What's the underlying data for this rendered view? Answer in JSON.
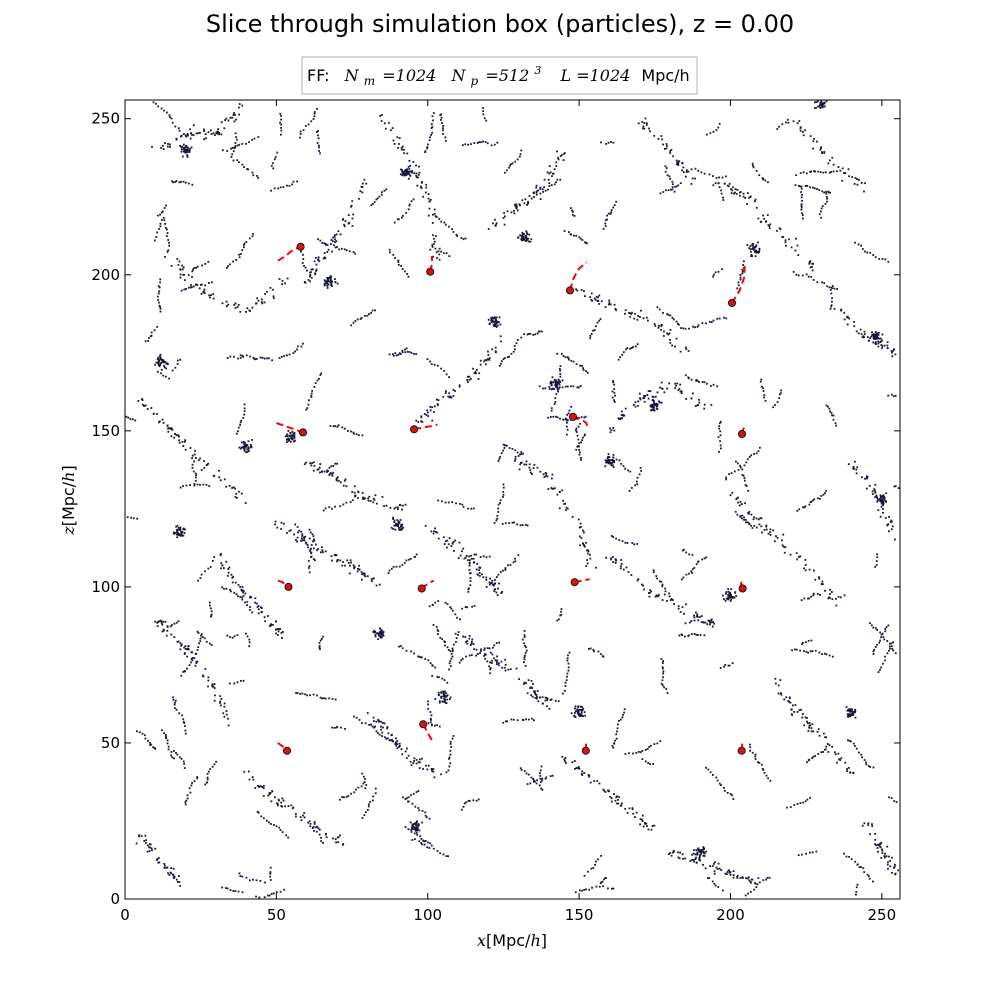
{
  "chart_data": {
    "type": "scatter",
    "title": "Slice through simulation box (particles), z = 0.00",
    "legend": {
      "prefix": "FF:",
      "n_m_symbol": "N",
      "n_m_sub": "m",
      "n_m_value": "=1024",
      "n_p_symbol": "N",
      "n_p_sub": "p",
      "n_p_value": "=512",
      "n_p_exp": "3",
      "l_symbol": "L",
      "l_value": "=1024",
      "l_unit": "Mpc/h",
      "placement": "top-center"
    },
    "xlabel": {
      "var": "x",
      "unit": "Mpc/",
      "unit_var": "h"
    },
    "ylabel": {
      "var": "z",
      "unit": "Mpc/",
      "unit_var": "h"
    },
    "xlim": [
      0,
      256
    ],
    "ylim": [
      0,
      256
    ],
    "xticks": [
      0,
      50,
      100,
      150,
      200,
      250
    ],
    "yticks": [
      0,
      50,
      100,
      150,
      200,
      250
    ],
    "grid": false,
    "particle_color": "#16163a",
    "track_color": "#ff0000",
    "marker_color": "#d01515",
    "particles_note_count": 3200,
    "filaments": [
      [
        [
          10,
          240
        ],
        [
          22,
          246
        ],
        [
          30,
          245
        ],
        [
          38,
          253
        ]
      ],
      [
        [
          15,
          205
        ],
        [
          25,
          195
        ],
        [
          40,
          188
        ],
        [
          55,
          200
        ]
      ],
      [
        [
          60,
          198
        ],
        [
          65,
          205
        ],
        [
          72,
          215
        ],
        [
          80,
          230
        ]
      ],
      [
        [
          85,
          250
        ],
        [
          95,
          235
        ],
        [
          100,
          225
        ],
        [
          103,
          205
        ]
      ],
      [
        [
          120,
          215
        ],
        [
          130,
          222
        ],
        [
          138,
          228
        ],
        [
          145,
          240
        ]
      ],
      [
        [
          150,
          195
        ],
        [
          160,
          190
        ],
        [
          175,
          185
        ],
        [
          185,
          175
        ]
      ],
      [
        [
          195,
          230
        ],
        [
          205,
          225
        ],
        [
          215,
          215
        ],
        [
          230,
          200
        ]
      ],
      [
        [
          235,
          190
        ],
        [
          245,
          180
        ],
        [
          255,
          175
        ]
      ],
      [
        [
          5,
          160
        ],
        [
          15,
          150
        ],
        [
          25,
          140
        ],
        [
          40,
          128
        ]
      ],
      [
        [
          50,
          120
        ],
        [
          60,
          115
        ],
        [
          72,
          108
        ],
        [
          85,
          100
        ]
      ],
      [
        [
          95,
          150
        ],
        [
          105,
          160
        ],
        [
          115,
          168
        ],
        [
          125,
          180
        ]
      ],
      [
        [
          130,
          140
        ],
        [
          140,
          135
        ],
        [
          150,
          120
        ],
        [
          155,
          105
        ]
      ],
      [
        [
          160,
          150
        ],
        [
          170,
          160
        ],
        [
          180,
          165
        ],
        [
          195,
          155
        ]
      ],
      [
        [
          200,
          130
        ],
        [
          210,
          120
        ],
        [
          222,
          110
        ],
        [
          235,
          95
        ]
      ],
      [
        [
          240,
          140
        ],
        [
          248,
          130
        ],
        [
          255,
          115
        ]
      ],
      [
        [
          10,
          90
        ],
        [
          20,
          80
        ],
        [
          28,
          70
        ],
        [
          35,
          55
        ]
      ],
      [
        [
          40,
          40
        ],
        [
          50,
          32
        ],
        [
          60,
          25
        ],
        [
          72,
          18
        ]
      ],
      [
        [
          80,
          60
        ],
        [
          88,
          52
        ],
        [
          95,
          45
        ],
        [
          105,
          38
        ]
      ],
      [
        [
          110,
          85
        ],
        [
          120,
          78
        ],
        [
          130,
          72
        ],
        [
          140,
          62
        ]
      ],
      [
        [
          145,
          45
        ],
        [
          155,
          38
        ],
        [
          165,
          30
        ],
        [
          175,
          22
        ]
      ],
      [
        [
          180,
          15
        ],
        [
          190,
          12
        ],
        [
          200,
          8
        ],
        [
          210,
          5
        ]
      ],
      [
        [
          215,
          70
        ],
        [
          222,
          60
        ],
        [
          230,
          52
        ],
        [
          240,
          40
        ]
      ],
      [
        [
          245,
          25
        ],
        [
          250,
          15
        ],
        [
          255,
          8
        ]
      ],
      [
        [
          5,
          20
        ],
        [
          12,
          12
        ],
        [
          18,
          5
        ]
      ],
      [
        [
          60,
          140
        ],
        [
          70,
          135
        ],
        [
          80,
          128
        ],
        [
          92,
          125
        ]
      ],
      [
        [
          160,
          110
        ],
        [
          172,
          100
        ],
        [
          185,
          92
        ],
        [
          196,
          88
        ]
      ],
      [
        [
          30,
          110
        ],
        [
          38,
          100
        ],
        [
          45,
          92
        ],
        [
          52,
          85
        ]
      ],
      [
        [
          100,
          120
        ],
        [
          110,
          112
        ],
        [
          118,
          104
        ],
        [
          125,
          98
        ]
      ],
      [
        [
          170,
          250
        ],
        [
          180,
          240
        ],
        [
          188,
          230
        ]
      ],
      [
        [
          220,
          250
        ],
        [
          232,
          238
        ],
        [
          244,
          228
        ]
      ]
    ],
    "clumps": [
      [
        20,
        240
      ],
      [
        68,
        198
      ],
      [
        93,
        233
      ],
      [
        132,
        212
      ],
      [
        160,
        140
      ],
      [
        208,
        208
      ],
      [
        248,
        180
      ],
      [
        18,
        118
      ],
      [
        90,
        120
      ],
      [
        150,
        60
      ],
      [
        190,
        15
      ],
      [
        96,
        23
      ],
      [
        240,
        60
      ],
      [
        105,
        65
      ],
      [
        200,
        97
      ],
      [
        122,
        185
      ],
      [
        55,
        148
      ],
      [
        250,
        128
      ],
      [
        40,
        145
      ],
      [
        175,
        158
      ],
      [
        12,
        172
      ],
      [
        84,
        85
      ],
      [
        142,
        165
      ],
      [
        230,
        255
      ]
    ],
    "tracks": [
      {
        "x": [
          50.5,
          53,
          55.5,
          58
        ],
        "y": [
          204.5,
          206,
          208,
          209
        ]
      },
      {
        "x": [
          100.8,
          101.5,
          101.3
        ],
        "y": [
          201,
          204,
          206
        ]
      },
      {
        "x": [
          147,
          148.2,
          150,
          152.5
        ],
        "y": [
          195,
          199,
          202,
          204
        ]
      },
      {
        "x": [
          200.5,
          203,
          204.5,
          204.8
        ],
        "y": [
          191,
          195,
          199,
          204
        ]
      },
      {
        "x": [
          50,
          53,
          56,
          58.8
        ],
        "y": [
          152.5,
          151.5,
          150.5,
          149.5
        ]
      },
      {
        "x": [
          95.5,
          98,
          101,
          103.2
        ],
        "y": [
          150.5,
          151,
          151.5,
          152
        ]
      },
      {
        "x": [
          148,
          150.5,
          152.3,
          153.3
        ],
        "y": [
          154.5,
          154,
          152.5,
          150.5
        ]
      },
      {
        "x": [
          203.8,
          204.2,
          204.5
        ],
        "y": [
          149,
          150.5,
          151
        ]
      },
      {
        "x": [
          50.5,
          52,
          54
        ],
        "y": [
          102,
          101.5,
          100
        ]
      },
      {
        "x": [
          98,
          100,
          102
        ],
        "y": [
          99.5,
          101,
          102
        ]
      },
      {
        "x": [
          148.5,
          151,
          153.5
        ],
        "y": [
          101.5,
          102,
          102.5
        ]
      },
      {
        "x": [
          204,
          203.5,
          203.8
        ],
        "y": [
          99.5,
          101,
          102
        ]
      },
      {
        "x": [
          50.5,
          52,
          53.5
        ],
        "y": [
          50,
          49,
          47.5
        ]
      },
      {
        "x": [
          98.5,
          99.8,
          101,
          102
        ],
        "y": [
          56,
          53.5,
          51.5,
          50
        ]
      },
      {
        "x": [
          152.2,
          152.3
        ],
        "y": [
          47.5,
          50
        ]
      },
      {
        "x": [
          203.7,
          203.9
        ],
        "y": [
          47.5,
          50
        ]
      }
    ],
    "markers": [
      [
        58,
        209
      ],
      [
        100.8,
        201
      ],
      [
        147,
        195
      ],
      [
        200.5,
        191
      ],
      [
        58.8,
        149.5
      ],
      [
        95.5,
        150.5
      ],
      [
        148,
        154.5
      ],
      [
        203.8,
        149
      ],
      [
        54,
        100
      ],
      [
        98,
        99.5
      ],
      [
        148.5,
        101.5
      ],
      [
        204,
        99.5
      ],
      [
        53.5,
        47.5
      ],
      [
        98.5,
        56
      ],
      [
        152.2,
        47.5
      ],
      [
        203.7,
        47.5
      ]
    ]
  }
}
